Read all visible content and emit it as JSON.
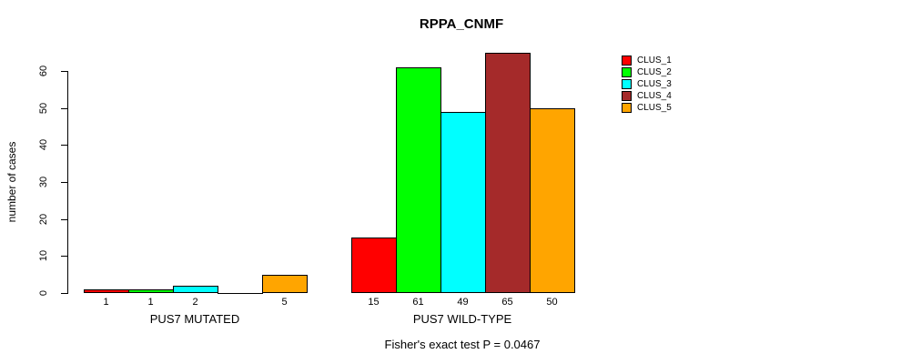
{
  "chart_data": {
    "type": "bar",
    "title": "RPPA_CNMF",
    "xlabel": "",
    "ylabel": "number of cases",
    "ylim": [
      0,
      60
    ],
    "yticks": [
      0,
      10,
      20,
      30,
      40,
      50,
      60
    ],
    "grid": false,
    "legend_position": "right-outside",
    "series": [
      {
        "name": "CLUS_1",
        "color": "#FF0000"
      },
      {
        "name": "CLUS_2",
        "color": "#00FF00"
      },
      {
        "name": "CLUS_3",
        "color": "#00FFFF"
      },
      {
        "name": "CLUS_4",
        "color": "#A52A2A"
      },
      {
        "name": "CLUS_5",
        "color": "#FFA500"
      }
    ],
    "groups": [
      {
        "label": "PUS7 MUTATED",
        "values": [
          1,
          1,
          2,
          0,
          5
        ],
        "bar_labels": [
          "1",
          "1",
          "2",
          "",
          "5"
        ]
      },
      {
        "label": "PUS7 WILD-TYPE",
        "values": [
          15,
          61,
          49,
          65,
          50
        ],
        "bar_labels": [
          "15",
          "61",
          "49",
          "65",
          "50"
        ]
      }
    ],
    "annotation": "Fisher's exact test P = 0.0467",
    "bar_border_color": "#000000",
    "text_color": "#000000",
    "background_color": "#FFFFFF"
  }
}
